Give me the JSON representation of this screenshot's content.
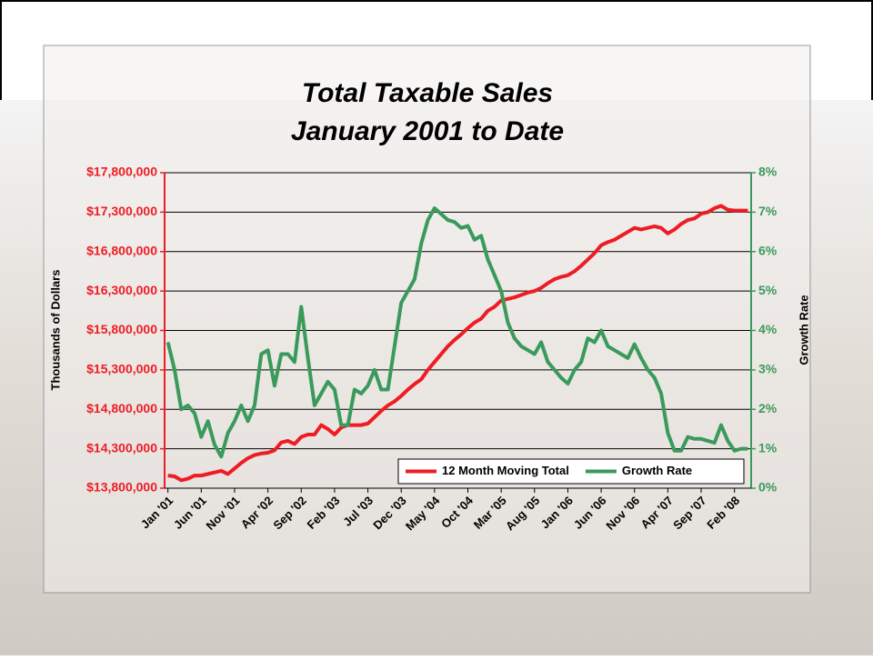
{
  "chart_data": {
    "type": "line",
    "title": "Total Taxable Sales",
    "subtitle": "January 2001 to Date",
    "y_label": "Thousands of Dollars",
    "y2_label": "Growth Rate",
    "categories": [
      "Jan '01",
      null,
      null,
      null,
      null,
      "Jun '01",
      null,
      null,
      null,
      null,
      "Nov '01",
      null,
      null,
      null,
      null,
      "Apr '02",
      null,
      null,
      null,
      null,
      "Sep '02",
      null,
      null,
      null,
      null,
      "Feb '03",
      null,
      null,
      null,
      null,
      "Jul '03",
      null,
      null,
      null,
      null,
      "Dec '03",
      null,
      null,
      null,
      null,
      "May '04",
      null,
      null,
      null,
      null,
      "Oct '04",
      null,
      null,
      null,
      null,
      "Mar '05",
      null,
      null,
      null,
      null,
      "Aug '05",
      null,
      null,
      null,
      null,
      "Jan '06",
      null,
      null,
      null,
      null,
      "Jun '06",
      null,
      null,
      null,
      null,
      "Nov '06",
      null,
      null,
      null,
      null,
      "Apr '07",
      null,
      null,
      null,
      null,
      "Sep '07",
      null,
      null,
      null,
      null,
      "Feb '08",
      null,
      null
    ],
    "series": [
      {
        "name": "12 Month Moving Total",
        "color": "#ee1c24",
        "axis": "y",
        "values": [
          13960000,
          13950000,
          13900000,
          13920000,
          13960000,
          13960000,
          13980000,
          14000000,
          14020000,
          13980000,
          14050000,
          14120000,
          14180000,
          14220000,
          14240000,
          14250000,
          14280000,
          14380000,
          14400000,
          14360000,
          14450000,
          14480000,
          14480000,
          14600000,
          14550000,
          14480000,
          14570000,
          14600000,
          14600000,
          14600000,
          14620000,
          14700000,
          14780000,
          14850000,
          14900000,
          14970000,
          15050000,
          15120000,
          15180000,
          15300000,
          15400000,
          15500000,
          15600000,
          15680000,
          15750000,
          15830000,
          15900000,
          15950000,
          16050000,
          16100000,
          16180000,
          16200000,
          16220000,
          16250000,
          16280000,
          16300000,
          16340000,
          16400000,
          16450000,
          16480000,
          16500000,
          16550000,
          16620000,
          16700000,
          16780000,
          16880000,
          16920000,
          16950000,
          17000000,
          17050000,
          17100000,
          17080000,
          17100000,
          17120000,
          17100000,
          17030000,
          17080000,
          17150000,
          17200000,
          17220000,
          17280000,
          17300000,
          17350000,
          17380000,
          17330000,
          17320000,
          17320000,
          17320000
        ]
      },
      {
        "name": "Growth Rate",
        "color": "#3a9a5c",
        "axis": "y2",
        "values": [
          3.7,
          3.0,
          2.0,
          2.1,
          1.9,
          1.3,
          1.7,
          1.1,
          0.8,
          1.4,
          1.7,
          2.1,
          1.7,
          2.1,
          3.4,
          3.5,
          2.6,
          3.4,
          3.4,
          3.2,
          4.6,
          3.3,
          2.1,
          2.4,
          2.7,
          2.5,
          1.6,
          1.6,
          2.5,
          2.4,
          2.6,
          3.0,
          2.5,
          2.5,
          3.6,
          4.7,
          5.0,
          5.3,
          6.2,
          6.8,
          7.1,
          6.95,
          6.8,
          6.75,
          6.6,
          6.65,
          6.3,
          6.4,
          5.8,
          5.4,
          5.0,
          4.2,
          3.8,
          3.6,
          3.5,
          3.4,
          3.7,
          3.2,
          3.0,
          2.8,
          2.65,
          3.0,
          3.2,
          3.8,
          3.7,
          4.0,
          3.6,
          3.5,
          3.4,
          3.3,
          3.65,
          3.3,
          3.0,
          2.8,
          2.4,
          1.4,
          0.95,
          0.95,
          1.3,
          1.25,
          1.25,
          1.2,
          1.15,
          1.6,
          1.2,
          0.95,
          1.0,
          1.0
        ]
      }
    ],
    "ylim": [
      13800000,
      17800000
    ],
    "yticks": [
      {
        "value": 13800000,
        "label": "$13,800,000"
      },
      {
        "value": 14300000,
        "label": "$14,300,000"
      },
      {
        "value": 14800000,
        "label": "$14,800,000"
      },
      {
        "value": 15300000,
        "label": "$15,300,000"
      },
      {
        "value": 15800000,
        "label": "$15,800,000"
      },
      {
        "value": 16300000,
        "label": "$16,300,000"
      },
      {
        "value": 16800000,
        "label": "$16,800,000"
      },
      {
        "value": 17300000,
        "label": "$17,300,000"
      },
      {
        "value": 17800000,
        "label": "$17,800,000"
      }
    ],
    "y2lim": [
      0,
      8
    ],
    "y2ticks": [
      {
        "value": 0,
        "label": "0%"
      },
      {
        "value": 1,
        "label": "1%"
      },
      {
        "value": 2,
        "label": "2%"
      },
      {
        "value": 3,
        "label": "3%"
      },
      {
        "value": 4,
        "label": "4%"
      },
      {
        "value": 5,
        "label": "5%"
      },
      {
        "value": 6,
        "label": "6%"
      },
      {
        "value": 7,
        "label": "7%"
      },
      {
        "value": 8,
        "label": "8%"
      }
    ],
    "grid": true,
    "legend": "lower right"
  }
}
